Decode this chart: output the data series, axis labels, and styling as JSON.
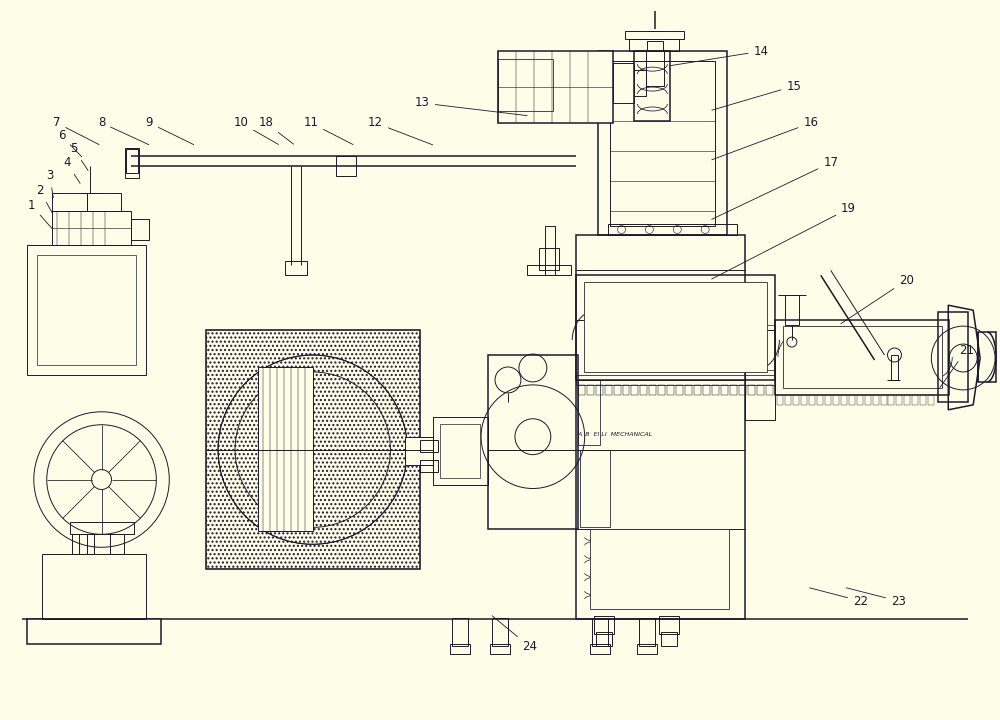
{
  "bg_color": "#FDFDE8",
  "line_color": "#1a1a2e",
  "lw": 0.7,
  "lw2": 1.1,
  "figsize": [
    10.0,
    7.2
  ],
  "dpi": 100,
  "annotations": [
    [
      "1",
      30,
      515,
      52,
      490
    ],
    [
      "2",
      38,
      530,
      52,
      505
    ],
    [
      "3",
      48,
      545,
      52,
      520
    ],
    [
      "4",
      65,
      558,
      80,
      535
    ],
    [
      "5",
      72,
      572,
      88,
      548
    ],
    [
      "6",
      60,
      585,
      82,
      562
    ],
    [
      "7",
      55,
      598,
      100,
      575
    ],
    [
      "8",
      100,
      598,
      150,
      575
    ],
    [
      "9",
      148,
      598,
      195,
      575
    ],
    [
      "10",
      240,
      598,
      280,
      575
    ],
    [
      "18",
      265,
      598,
      295,
      575
    ],
    [
      "11",
      310,
      598,
      355,
      575
    ],
    [
      "12",
      375,
      598,
      435,
      575
    ],
    [
      "13",
      422,
      618,
      530,
      605
    ],
    [
      "14",
      762,
      670,
      668,
      655
    ],
    [
      "15",
      795,
      635,
      710,
      610
    ],
    [
      "16",
      812,
      598,
      710,
      560
    ],
    [
      "17",
      832,
      558,
      710,
      500
    ],
    [
      "19",
      850,
      512,
      710,
      440
    ],
    [
      "20",
      908,
      440,
      840,
      395
    ],
    [
      "21",
      968,
      370,
      940,
      330
    ],
    [
      "22",
      862,
      118,
      808,
      132
    ],
    [
      "23",
      900,
      118,
      845,
      132
    ],
    [
      "24",
      530,
      72,
      490,
      105
    ]
  ]
}
